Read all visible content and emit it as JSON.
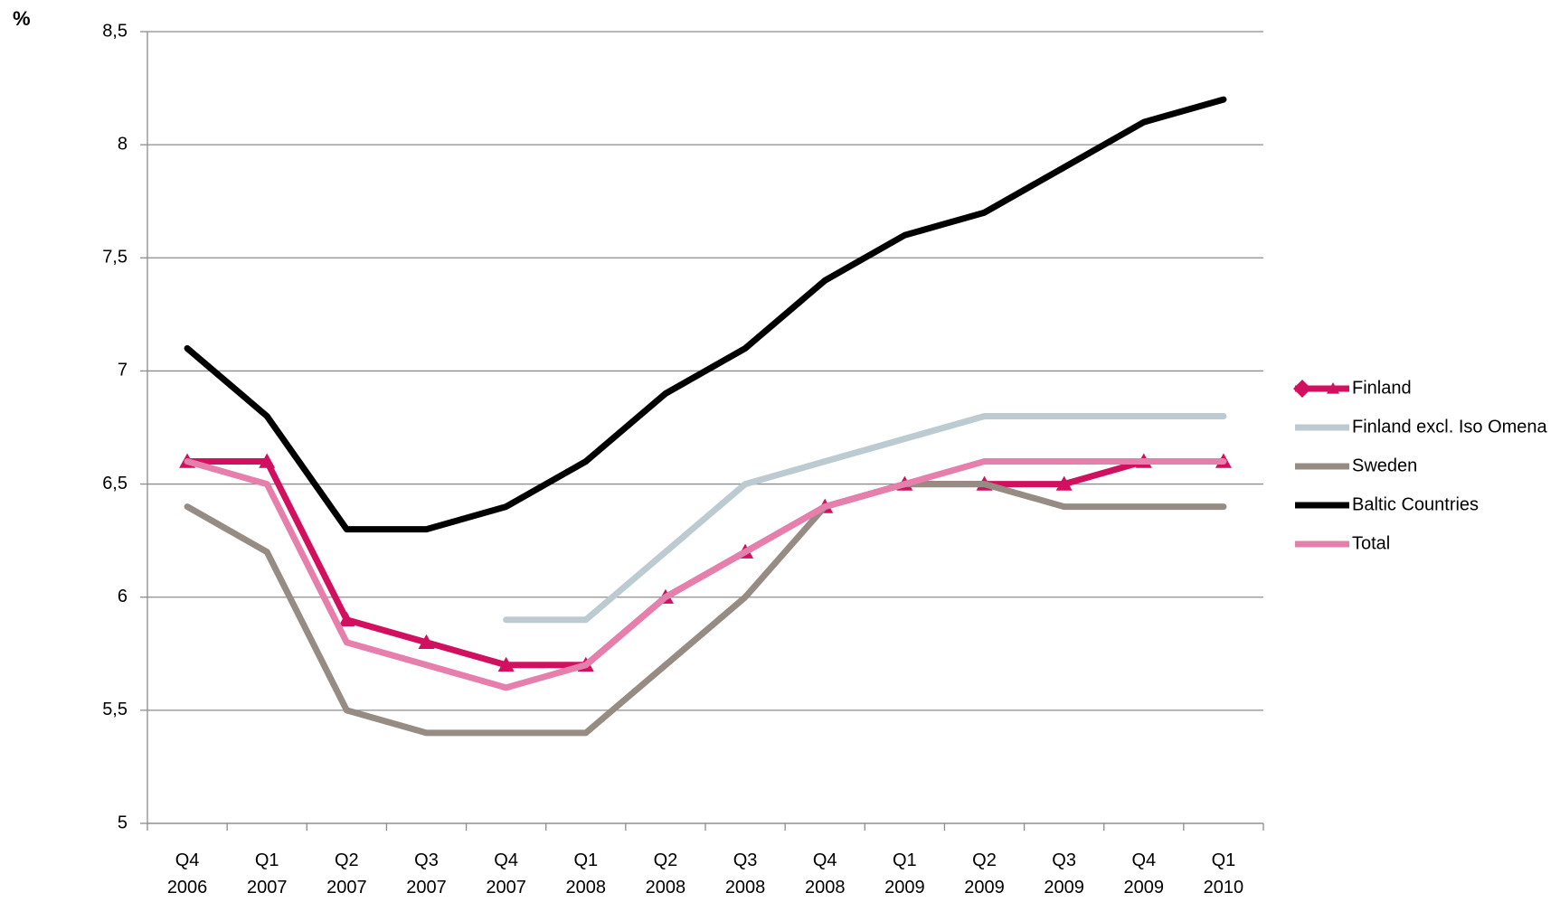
{
  "chart_data": {
    "type": "line",
    "y_label": "%",
    "categories": [
      "Q4 2006",
      "Q1 2007",
      "Q2 2007",
      "Q3 2007",
      "Q4 2007",
      "Q1 2008",
      "Q2 2008",
      "Q3 2008",
      "Q4 2008",
      "Q1 2009",
      "Q2 2009",
      "Q3 2009",
      "Q4 2009",
      "Q1 2010"
    ],
    "series": [
      {
        "name": "Finland",
        "color": "#d1105f",
        "marker": "triangle",
        "values": [
          6.6,
          6.6,
          5.9,
          5.8,
          5.7,
          5.7,
          6.0,
          6.2,
          6.4,
          6.5,
          6.5,
          6.5,
          6.6,
          6.6
        ]
      },
      {
        "name": "Finland excl. Iso Omena",
        "color": "#bccbd1",
        "values": [
          null,
          null,
          null,
          null,
          5.9,
          5.9,
          6.2,
          6.5,
          6.6,
          6.7,
          6.8,
          6.8,
          6.8,
          6.8
        ]
      },
      {
        "name": "Sweden",
        "color": "#968c83",
        "values": [
          6.4,
          6.2,
          5.5,
          5.4,
          5.4,
          5.4,
          5.7,
          6.0,
          6.4,
          6.5,
          6.5,
          6.4,
          6.4,
          6.4
        ]
      },
      {
        "name": "Baltic Countries",
        "color": "#000000",
        "values": [
          7.1,
          6.8,
          6.3,
          6.3,
          6.4,
          6.6,
          6.9,
          7.1,
          7.4,
          7.6,
          7.7,
          7.9,
          8.1,
          8.2
        ]
      },
      {
        "name": "Total",
        "color": "#e67fab",
        "values": [
          6.6,
          6.5,
          5.8,
          5.7,
          5.6,
          5.7,
          6.0,
          6.2,
          6.4,
          6.5,
          6.6,
          6.6,
          6.6,
          6.6
        ]
      }
    ],
    "ylim": [
      5,
      8.5
    ],
    "yticks": [
      5,
      {
        "value": 5.5,
        "label": "5,5"
      },
      6,
      {
        "value": 6.5,
        "label": "6,5"
      },
      7,
      {
        "value": 7.5,
        "label": "7,5"
      },
      8,
      {
        "value": 8.5,
        "label": "8,5"
      }
    ],
    "grid": true,
    "legend": "right"
  }
}
